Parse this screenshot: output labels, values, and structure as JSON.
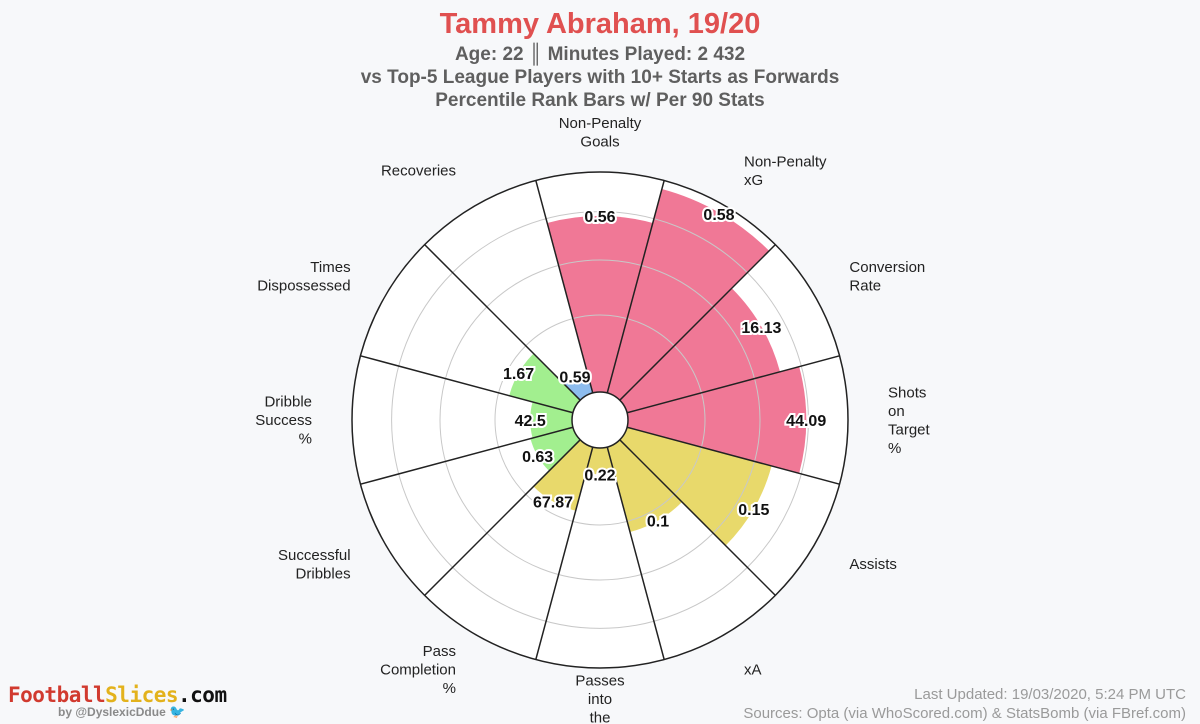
{
  "header": {
    "title": "Tammy Abraham, 19/20",
    "line1": "Age: 22 ║ Minutes Played: 2 432",
    "line2": "vs Top-5 League Players with 10+ Starts as Forwards",
    "line3": "Percentile Rank Bars w/ Per 90 Stats"
  },
  "chart_data": {
    "type": "polar-bar",
    "scale": "percentile",
    "range": [
      0,
      100
    ],
    "colors": {
      "attacking": "#f07896",
      "creation": "#e8d96b",
      "dribbling": "#a2ef8f",
      "defending": "#8dbcee"
    },
    "slices": [
      {
        "label": "Non-Penalty Goals",
        "value": "0.56",
        "percentile": 80,
        "group": "attacking"
      },
      {
        "label": "Non-Penalty xG",
        "value": "0.58",
        "percentile": 96,
        "group": "attacking"
      },
      {
        "label": "Conversion Rate",
        "value": "16.13",
        "percentile": 72,
        "group": "attacking"
      },
      {
        "label": "Shots on Target %",
        "value": "44.09",
        "percentile": 81,
        "group": "attacking"
      },
      {
        "label": "Assists",
        "value": "0.15",
        "percentile": 68,
        "group": "creation"
      },
      {
        "label": "xA",
        "value": "0.1",
        "percentile": 40,
        "group": "creation"
      },
      {
        "label": "Passes into the Penalty",
        "value": "0.22",
        "percentile": 12,
        "group": "creation"
      },
      {
        "label": "Pass Completion %",
        "value": "67.87",
        "percentile": 30,
        "group": "creation"
      },
      {
        "label": "Successful Dribbles",
        "value": "0.63",
        "percentile": 20,
        "group": "dribbling"
      },
      {
        "label": "Dribble Success %",
        "value": "42.5",
        "percentile": 19,
        "group": "dribbling"
      },
      {
        "label": "Times Dispossessed",
        "value": "1.67",
        "percentile": 30,
        "group": "dribbling"
      },
      {
        "label": "Recoveries",
        "value": "0.59",
        "percentile": 10,
        "group": "defending"
      }
    ]
  },
  "branding": {
    "part1": "Football",
    "part2": "Slices",
    "part3": ".com",
    "handle": "by @DyslexicDdue"
  },
  "footer": {
    "updated": "Last Updated: 19/03/2020, 5:24 PM UTC",
    "sources": "Sources: Opta (via WhoScored.com) & StatsBomb (via FBref.com)"
  }
}
